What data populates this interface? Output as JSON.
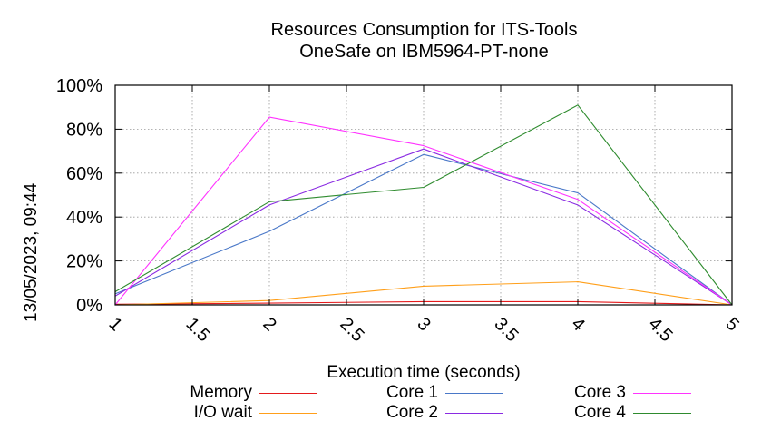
{
  "chart_data": {
    "type": "line",
    "title": "Resources Consumption for ITS-Tools",
    "subtitle": "OneSafe on IBM5964-PT-none",
    "xlabel": "Execution time (seconds)",
    "ylabel": "",
    "timestamp": "13/05/2023, 09:44",
    "xlim": [
      1,
      5
    ],
    "ylim": [
      0,
      100
    ],
    "x_ticks": [
      "1",
      "1.5",
      "2",
      "2.5",
      "3",
      "3.5",
      "4",
      "4.5",
      "5"
    ],
    "y_ticks": [
      "0%",
      "20%",
      "40%",
      "60%",
      "80%",
      "100%"
    ],
    "grid": true,
    "legend_position": "bottom",
    "x": [
      1,
      2,
      3,
      4,
      5
    ],
    "series": [
      {
        "name": "Memory",
        "color": "#e41a1c",
        "values": [
          0.3,
          0.8,
          1.5,
          1.5,
          0
        ]
      },
      {
        "name": "I/O wait",
        "color": "#ff9f1a",
        "values": [
          0,
          2,
          8.5,
          10.5,
          0
        ]
      },
      {
        "name": "Core 1",
        "color": "#4a78c8",
        "values": [
          5,
          33.5,
          68.5,
          51,
          0
        ]
      },
      {
        "name": "Core 2",
        "color": "#8a2be2",
        "values": [
          4,
          45.5,
          71,
          45.5,
          0
        ]
      },
      {
        "name": "Core 3",
        "color": "#ff33ff",
        "values": [
          0,
          85.5,
          72.5,
          48,
          0
        ]
      },
      {
        "name": "Core 4",
        "color": "#2e8b2e",
        "values": [
          6,
          47,
          53.5,
          91,
          0
        ]
      }
    ]
  }
}
